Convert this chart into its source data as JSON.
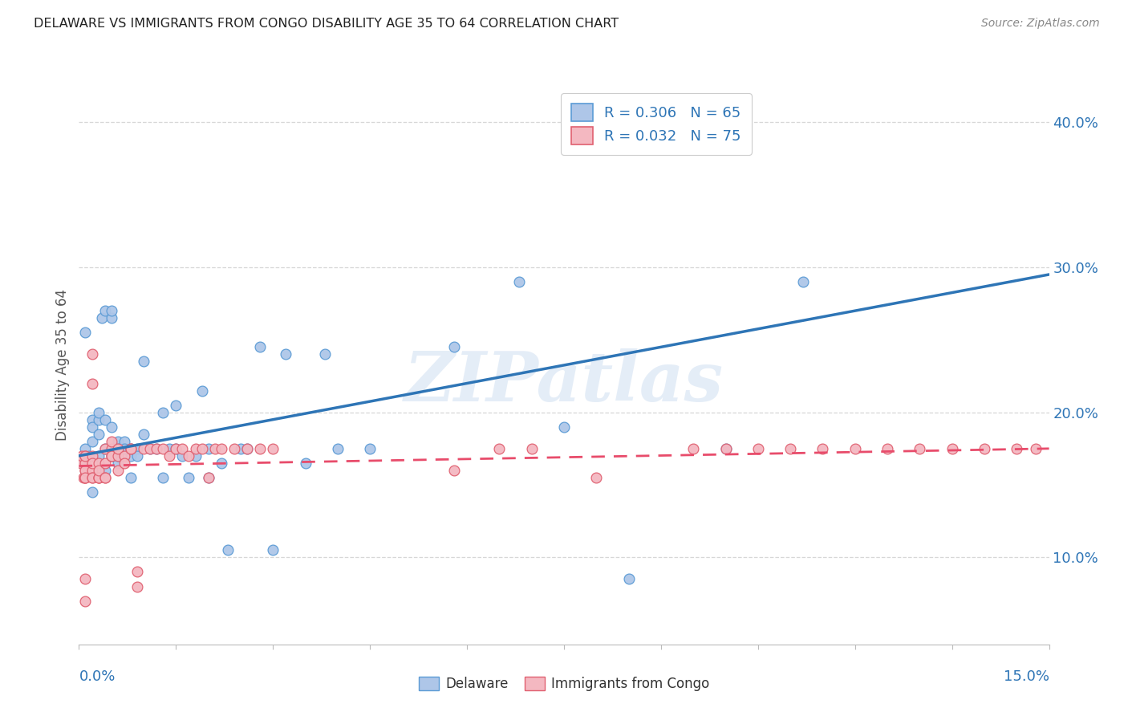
{
  "title": "DELAWARE VS IMMIGRANTS FROM CONGO DISABILITY AGE 35 TO 64 CORRELATION CHART",
  "source": "Source: ZipAtlas.com",
  "ylabel": "Disability Age 35 to 64",
  "ylabel_ticks": [
    "10.0%",
    "20.0%",
    "30.0%",
    "40.0%"
  ],
  "ylabel_tick_values": [
    0.1,
    0.2,
    0.3,
    0.4
  ],
  "xmin": 0.0,
  "xmax": 0.15,
  "ymin": 0.04,
  "ymax": 0.425,
  "delaware_color": "#aec6e8",
  "delaware_edge": "#5b9bd5",
  "congo_color": "#f4b8c1",
  "congo_edge": "#e06070",
  "delaware_line_color": "#2e75b6",
  "congo_line_color": "#e84c6b",
  "watermark": "ZIPatlas",
  "background_color": "#ffffff",
  "grid_color": "#d3d3d3",
  "delaware_x": [
    0.0005,
    0.001,
    0.001,
    0.0015,
    0.002,
    0.002,
    0.002,
    0.002,
    0.003,
    0.003,
    0.003,
    0.003,
    0.0035,
    0.004,
    0.004,
    0.004,
    0.004,
    0.005,
    0.005,
    0.005,
    0.005,
    0.006,
    0.006,
    0.006,
    0.006,
    0.007,
    0.007,
    0.007,
    0.008,
    0.008,
    0.008,
    0.009,
    0.009,
    0.01,
    0.01,
    0.011,
    0.012,
    0.013,
    0.013,
    0.014,
    0.015,
    0.015,
    0.016,
    0.017,
    0.018,
    0.019,
    0.02,
    0.02,
    0.022,
    0.023,
    0.025,
    0.026,
    0.028,
    0.03,
    0.032,
    0.035,
    0.038,
    0.04,
    0.068,
    0.075,
    0.085,
    0.1,
    0.112,
    0.058,
    0.045
  ],
  "delaware_y": [
    0.165,
    0.175,
    0.255,
    0.17,
    0.18,
    0.195,
    0.145,
    0.19,
    0.195,
    0.185,
    0.17,
    0.2,
    0.265,
    0.16,
    0.175,
    0.195,
    0.27,
    0.265,
    0.27,
    0.17,
    0.19,
    0.165,
    0.17,
    0.18,
    0.175,
    0.175,
    0.18,
    0.175,
    0.175,
    0.17,
    0.155,
    0.175,
    0.17,
    0.185,
    0.235,
    0.175,
    0.175,
    0.2,
    0.155,
    0.175,
    0.175,
    0.205,
    0.17,
    0.155,
    0.17,
    0.215,
    0.175,
    0.155,
    0.165,
    0.105,
    0.175,
    0.175,
    0.245,
    0.105,
    0.24,
    0.165,
    0.24,
    0.175,
    0.29,
    0.19,
    0.085,
    0.175,
    0.29,
    0.245,
    0.175
  ],
  "congo_x": [
    0.0003,
    0.0005,
    0.0007,
    0.001,
    0.001,
    0.001,
    0.001,
    0.001,
    0.001,
    0.001,
    0.001,
    0.001,
    0.001,
    0.002,
    0.002,
    0.002,
    0.002,
    0.002,
    0.002,
    0.002,
    0.003,
    0.003,
    0.003,
    0.003,
    0.003,
    0.004,
    0.004,
    0.004,
    0.004,
    0.005,
    0.005,
    0.005,
    0.005,
    0.006,
    0.006,
    0.006,
    0.007,
    0.007,
    0.008,
    0.008,
    0.009,
    0.009,
    0.01,
    0.011,
    0.012,
    0.013,
    0.014,
    0.015,
    0.016,
    0.017,
    0.018,
    0.019,
    0.02,
    0.021,
    0.022,
    0.024,
    0.026,
    0.028,
    0.03,
    0.058,
    0.065,
    0.07,
    0.08,
    0.095,
    0.1,
    0.105,
    0.11,
    0.115,
    0.12,
    0.125,
    0.13,
    0.135,
    0.14,
    0.145,
    0.148
  ],
  "congo_y": [
    0.165,
    0.17,
    0.155,
    0.17,
    0.155,
    0.16,
    0.165,
    0.155,
    0.16,
    0.17,
    0.07,
    0.085,
    0.155,
    0.17,
    0.16,
    0.165,
    0.155,
    0.155,
    0.24,
    0.22,
    0.165,
    0.155,
    0.155,
    0.155,
    0.16,
    0.155,
    0.165,
    0.175,
    0.155,
    0.175,
    0.17,
    0.18,
    0.17,
    0.16,
    0.17,
    0.175,
    0.17,
    0.165,
    0.175,
    0.175,
    0.08,
    0.09,
    0.175,
    0.175,
    0.175,
    0.175,
    0.17,
    0.175,
    0.175,
    0.17,
    0.175,
    0.175,
    0.155,
    0.175,
    0.175,
    0.175,
    0.175,
    0.175,
    0.175,
    0.16,
    0.175,
    0.175,
    0.155,
    0.175,
    0.175,
    0.175,
    0.175,
    0.175,
    0.175,
    0.175,
    0.175,
    0.175,
    0.175,
    0.175,
    0.175
  ]
}
